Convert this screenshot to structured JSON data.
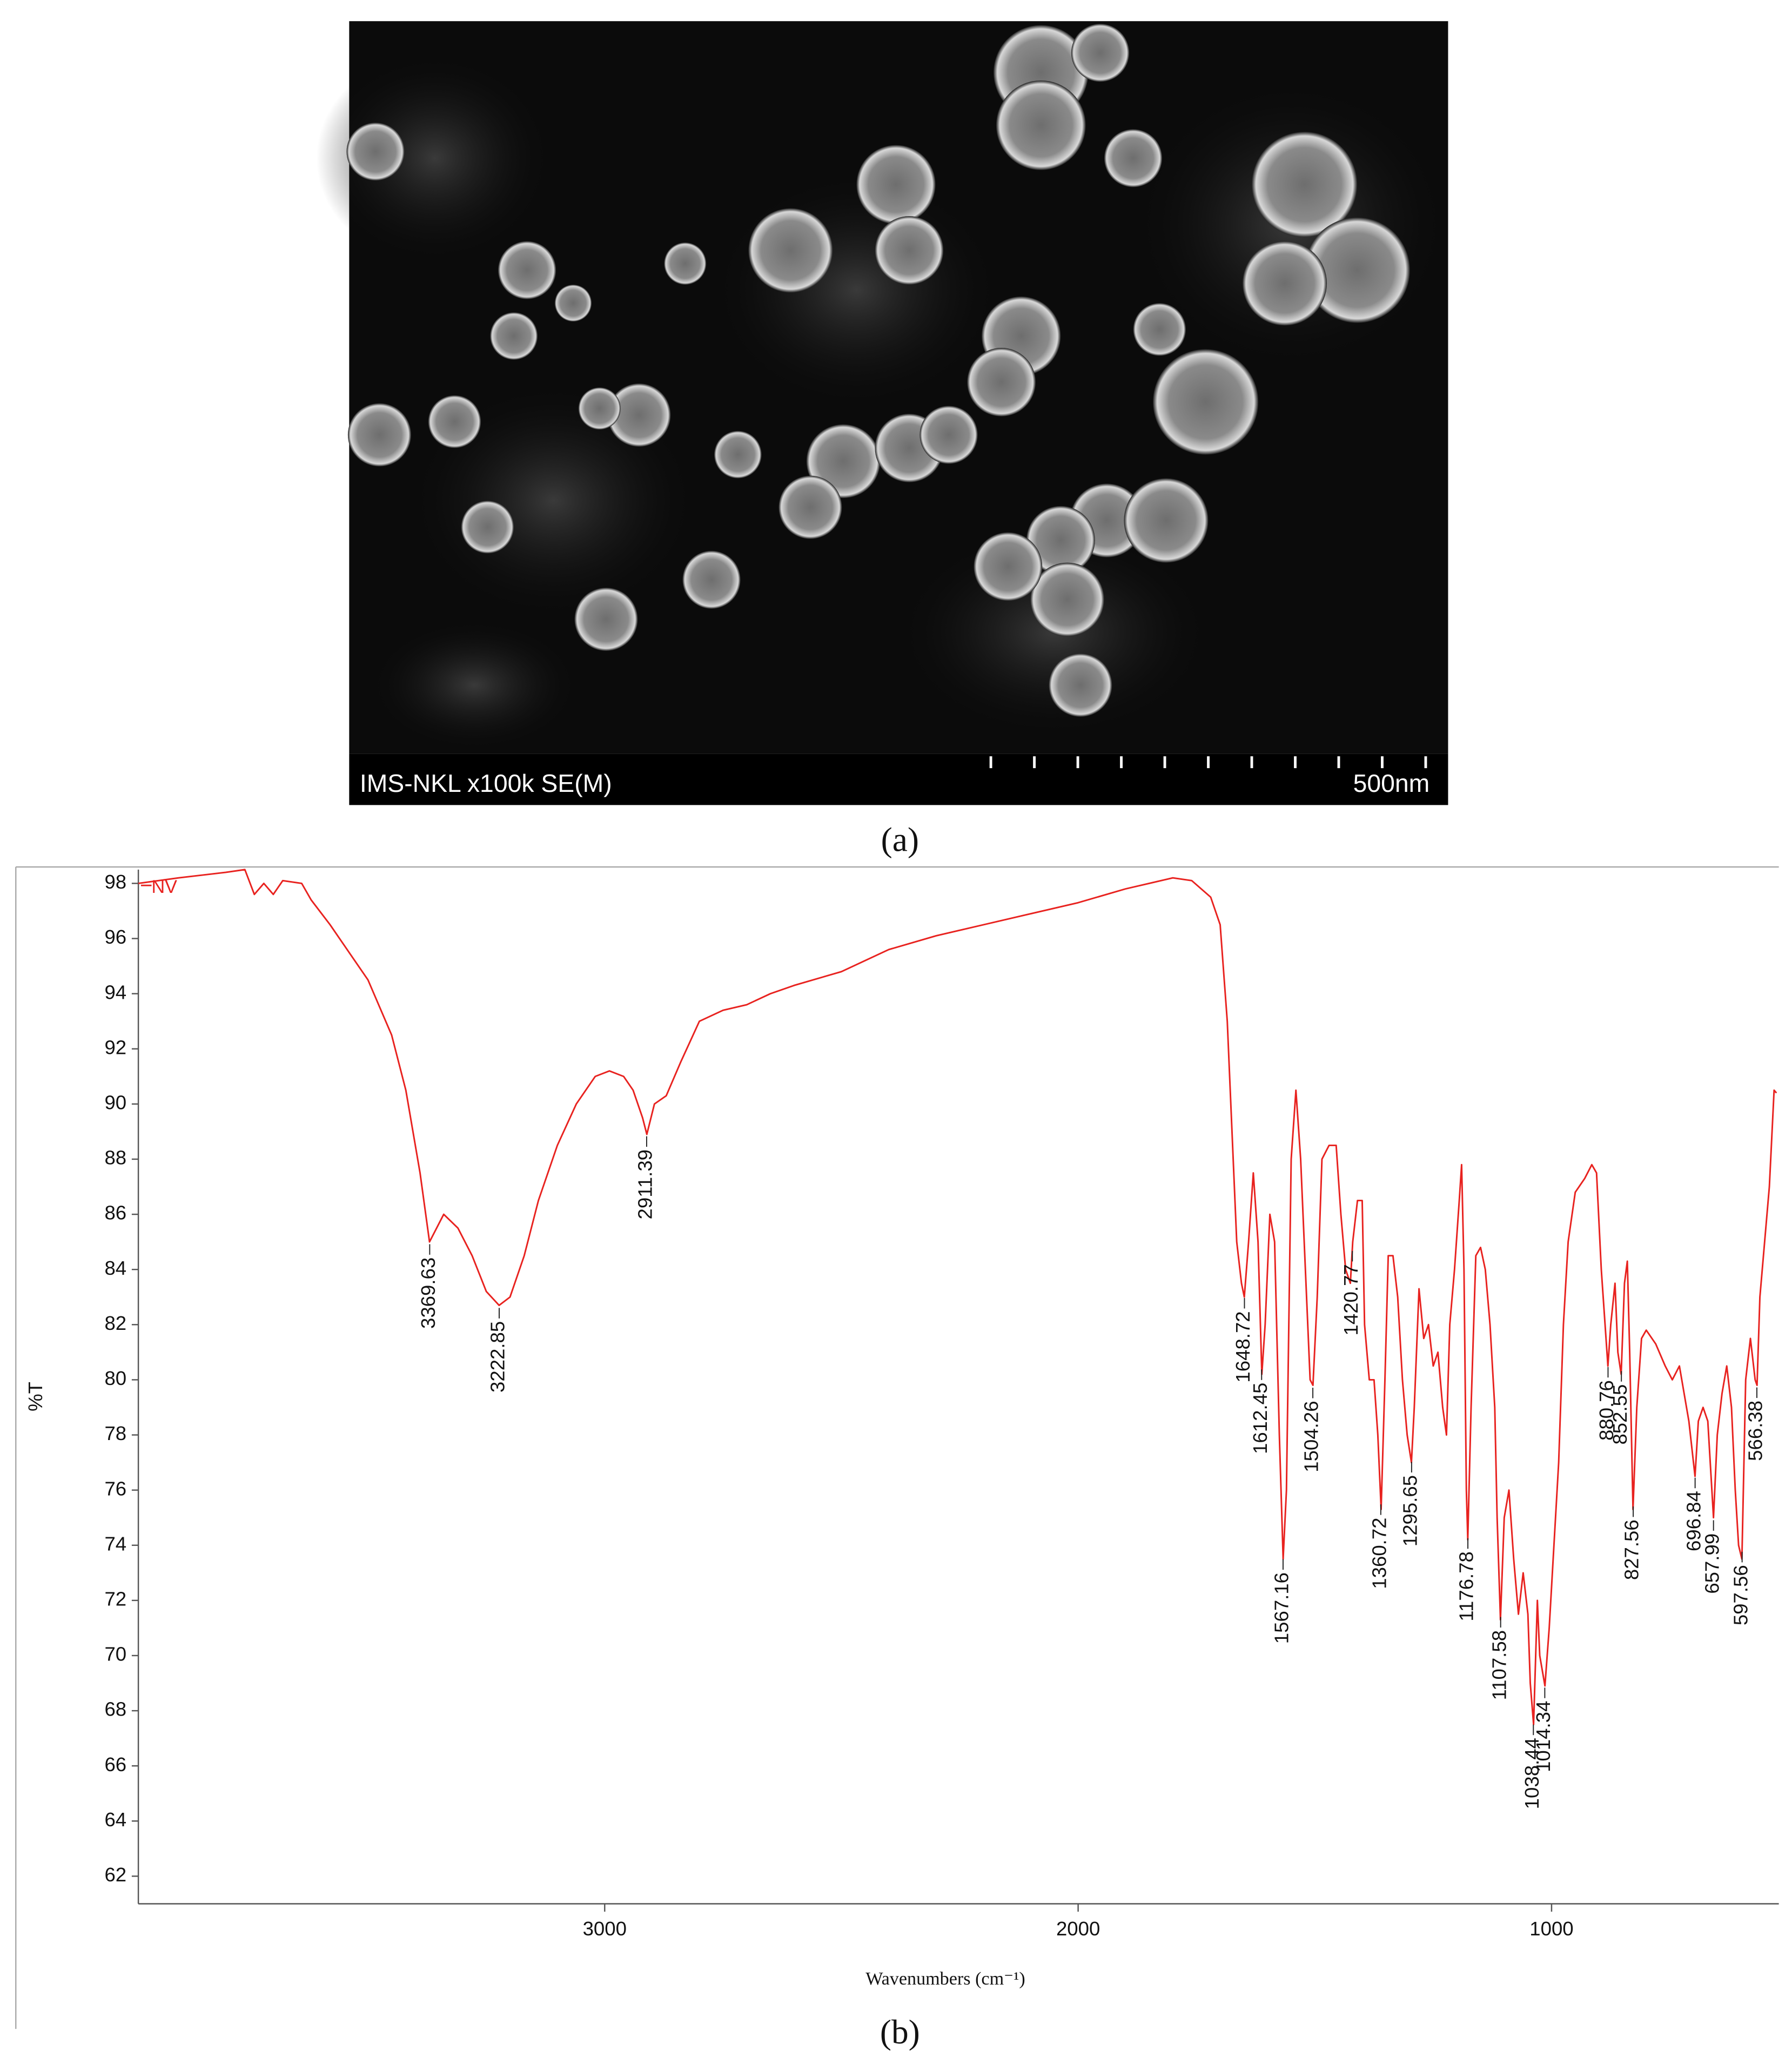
{
  "panel_a": {
    "label": "(a)",
    "sem_caption": "IMS-NKL x100k SE(M)",
    "scale_bar": "500nm"
  },
  "panel_b_label": "(b)",
  "chart_data": {
    "type": "line",
    "x_label": "Wavenumbers (cm⁻¹)",
    "y_label": "%T",
    "xlim": [
      3985,
      520
    ],
    "ylim": [
      61,
      98.5
    ],
    "xticks": [
      3000,
      2000,
      1000
    ],
    "yticks": [
      62,
      64,
      66,
      68,
      70,
      72,
      74,
      76,
      78,
      80,
      82,
      84,
      86,
      88,
      90,
      92,
      94,
      96,
      98
    ],
    "grid": false,
    "legend": "top-left",
    "x": [
      3985,
      3900,
      3800,
      3760,
      3740,
      3720,
      3700,
      3680,
      3640,
      3620,
      3580,
      3540,
      3500,
      3450,
      3420,
      3390,
      3370,
      3340,
      3310,
      3280,
      3250,
      3223,
      3200,
      3170,
      3140,
      3100,
      3060,
      3020,
      2990,
      2960,
      2940,
      2920,
      2911,
      2895,
      2870,
      2840,
      2800,
      2750,
      2700,
      2650,
      2600,
      2500,
      2400,
      2300,
      2200,
      2100,
      2000,
      1900,
      1850,
      1800,
      1760,
      1720,
      1700,
      1685,
      1675,
      1665,
      1655,
      1649,
      1640,
      1630,
      1620,
      1612,
      1605,
      1595,
      1585,
      1575,
      1567,
      1560,
      1550,
      1540,
      1530,
      1520,
      1510,
      1504,
      1495,
      1485,
      1470,
      1455,
      1445,
      1435,
      1425,
      1420,
      1410,
      1400,
      1395,
      1385,
      1375,
      1367,
      1360,
      1352,
      1345,
      1335,
      1325,
      1315,
      1305,
      1296,
      1290,
      1280,
      1270,
      1260,
      1250,
      1240,
      1230,
      1222,
      1215,
      1205,
      1195,
      1190,
      1185,
      1180,
      1177,
      1170,
      1160,
      1150,
      1140,
      1130,
      1120,
      1115,
      1108,
      1100,
      1090,
      1080,
      1070,
      1060,
      1050,
      1045,
      1038,
      1030,
      1025,
      1014,
      1005,
      995,
      985,
      975,
      965,
      950,
      930,
      915,
      905,
      895,
      885,
      881,
      875,
      866,
      860,
      853,
      846,
      840,
      835,
      828,
      820,
      810,
      800,
      780,
      760,
      745,
      730,
      720,
      710,
      697,
      690,
      680,
      670,
      658,
      650,
      640,
      630,
      620,
      612,
      605,
      598,
      590,
      580,
      570,
      566,
      560,
      550,
      540,
      530,
      525
    ],
    "series": [
      {
        "name": "NV",
        "color": "#e8221f",
        "values": [
          98,
          98.2,
          98.4,
          98.5,
          97.6,
          98.0,
          97.6,
          98.1,
          98.0,
          97.4,
          96.5,
          95.5,
          94.5,
          92.5,
          90.5,
          87.5,
          85,
          86,
          85.5,
          84.5,
          83.2,
          82.7,
          83,
          84.5,
          86.5,
          88.5,
          90,
          91,
          91.2,
          91,
          90.5,
          89.5,
          88.9,
          90,
          90.3,
          91.5,
          93,
          93.4,
          93.6,
          94,
          94.3,
          94.8,
          95.6,
          96.1,
          96.5,
          96.9,
          97.3,
          97.8,
          98.0,
          98.2,
          98.1,
          97.5,
          96.5,
          93,
          89,
          85,
          83.5,
          83.0,
          85,
          87.5,
          85,
          80.2,
          82,
          86,
          85,
          78,
          73.5,
          76,
          88,
          90.5,
          88,
          84,
          80,
          79.8,
          83,
          88,
          88.5,
          88.5,
          86,
          84,
          83.5,
          85,
          86.5,
          86.5,
          82,
          80,
          80,
          78,
          75.3,
          80,
          84.5,
          84.5,
          83,
          80,
          78,
          77,
          79,
          83.3,
          81.5,
          82,
          80.5,
          81,
          79,
          78,
          82,
          84,
          86.5,
          87.8,
          84,
          76,
          74.2,
          79,
          84.5,
          84.8,
          84,
          82,
          79,
          75,
          71.3,
          75,
          76,
          73.5,
          71.5,
          73,
          71.5,
          69,
          67.5,
          72,
          70,
          68.9,
          71,
          74,
          77,
          82,
          85,
          86.8,
          87.3,
          87.8,
          87.5,
          84,
          81.5,
          80.5,
          82,
          83.5,
          81,
          80.2,
          83.5,
          84.3,
          81,
          75.3,
          79,
          81.5,
          81.8,
          81.3,
          80.5,
          80,
          80.5,
          79.5,
          78.5,
          76.5,
          78.5,
          79,
          78.5,
          75,
          78,
          79.5,
          80.5,
          79,
          76,
          74,
          73.5,
          80,
          81.5,
          80,
          79.8,
          83,
          85,
          87,
          90.5,
          90.4
        ]
      }
    ],
    "peaks": [
      3369.63,
      3222.85,
      2911.39,
      1648.72,
      1612.45,
      1567.16,
      1504.26,
      1420.77,
      1360.72,
      1295.65,
      1176.78,
      1107.58,
      1038.44,
      1014.34,
      880.76,
      852.55,
      827.56,
      696.84,
      657.99,
      597.56,
      566.38
    ]
  }
}
